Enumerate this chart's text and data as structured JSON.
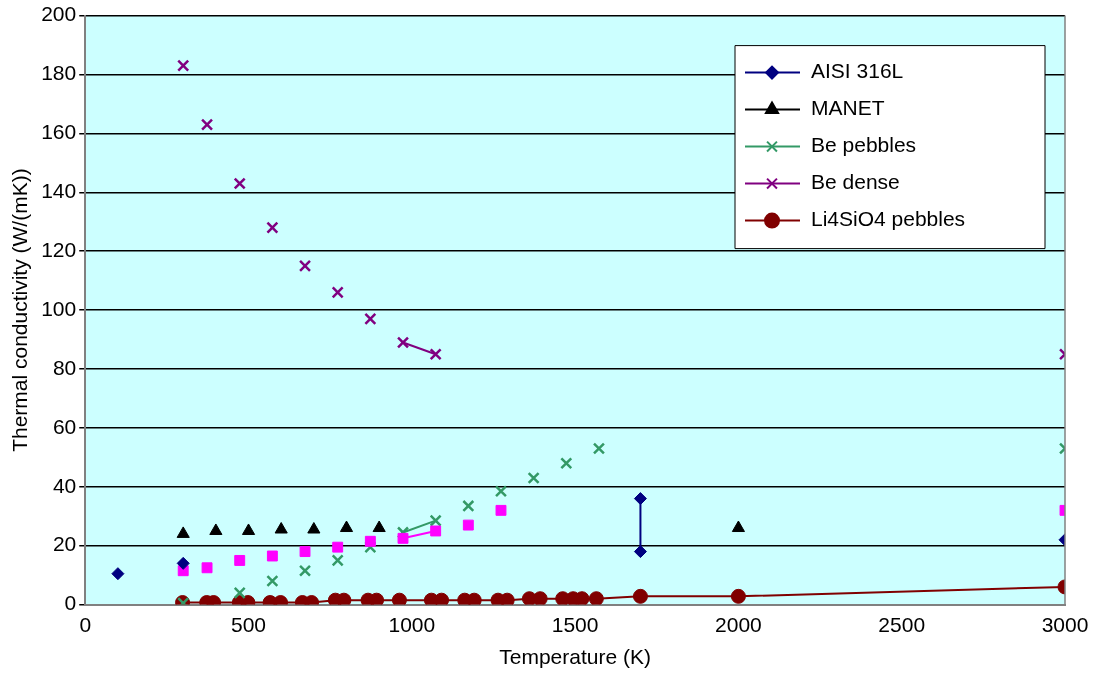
{
  "chart_data": {
    "type": "line",
    "xlabel": "Temperature (K)",
    "ylabel": "Thermal conductivity (W/(mK))",
    "xlim": [
      0,
      3000
    ],
    "xticks": [
      0,
      500,
      1000,
      1500,
      2000,
      2500,
      3000
    ],
    "ylim": [
      0,
      200
    ],
    "yticks": [
      0,
      20,
      40,
      60,
      80,
      100,
      120,
      140,
      160,
      180,
      200
    ],
    "grid": "y",
    "legend": "top right",
    "series": [
      {
        "name": "AISI 316L",
        "color": "#000080",
        "marker": "diamond",
        "x": [
          100,
          200,
          300,
          1000,
          1700,
          1700,
          2350,
          3000
        ],
        "values": [
          10.5,
          null,
          14,
          null,
          36,
          18,
          null,
          22
        ]
      },
      {
        "color": "#ff00ff",
        "marker": "square",
        "x": [
          300,
          336,
          373,
          423,
          473,
          523,
          573,
          623,
          673,
          723,
          773,
          823,
          873,
          923,
          973,
          1073,
          1123,
          1173,
          1223,
          1273,
          2100,
          3000
        ],
        "values": [
          11.5,
          null,
          12.5,
          null,
          15,
          null,
          16.5,
          null,
          18,
          null,
          19.5,
          null,
          21.5,
          null,
          22.5,
          25,
          null,
          27,
          null,
          32,
          null,
          32
        ]
      },
      {
        "name": "MANET",
        "type": "scatter",
        "color": "#000000",
        "marker": "triangle",
        "x": [
          300,
          400,
          500,
          600,
          700,
          800,
          900,
          2000
        ],
        "values": [
          24,
          25,
          25,
          25.5,
          25.5,
          26,
          26,
          26
        ]
      },
      {
        "name": "Be pebbles",
        "color": "#339966",
        "marker": "cross",
        "x": [
          300,
          400,
          473,
          523,
          573,
          623,
          673,
          723,
          773,
          823,
          873,
          923,
          973,
          1073,
          1123,
          1173,
          1223,
          1273,
          1323,
          1373,
          1423,
          1473,
          1523,
          1573,
          2300,
          3000
        ],
        "values": [
          0.5,
          null,
          4,
          null,
          8,
          null,
          11.5,
          null,
          15,
          null,
          19.5,
          null,
          24.5,
          28.5,
          null,
          33.5,
          null,
          38.5,
          null,
          43,
          null,
          48,
          null,
          53,
          null,
          53
        ]
      },
      {
        "name": "Be dense",
        "color": "#800080",
        "marker": "cross",
        "x": [
          300,
          336,
          373,
          423,
          473,
          523,
          573,
          623,
          673,
          723,
          773,
          823,
          873,
          923,
          973,
          1073,
          2000,
          3000
        ],
        "values": [
          183,
          null,
          163,
          null,
          143,
          null,
          128,
          null,
          115,
          null,
          106,
          null,
          97,
          null,
          89,
          85,
          null,
          85
        ]
      },
      {
        "name": "Li4SiO4 pebbles",
        "color": "#800000",
        "marker": "circle",
        "x": [
          298,
          372,
          393,
          472,
          498,
          566,
          598,
          665,
          693,
          766,
          792,
          866,
          892,
          962,
          1060,
          1091,
          1162,
          1191,
          1264,
          1292,
          1360,
          1393,
          1462,
          1494,
          1521,
          1565,
          1700,
          2000,
          3000
        ],
        "values": [
          0.7,
          0.7,
          0.7,
          0.7,
          0.7,
          0.7,
          0.7,
          0.7,
          0.7,
          1.5,
          1.5,
          1.5,
          1.5,
          1.5,
          1.5,
          1.5,
          1.5,
          1.5,
          1.5,
          1.5,
          2,
          2,
          2,
          2,
          2,
          2,
          2.8,
          2.8,
          6
        ]
      }
    ]
  }
}
